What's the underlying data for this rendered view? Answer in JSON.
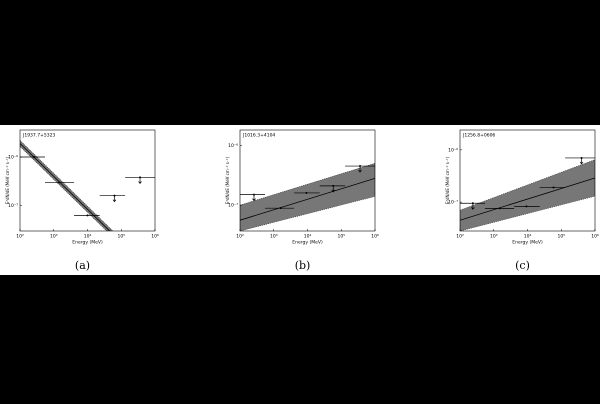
{
  "chart_data": [
    {
      "type": "sed",
      "annotation": "J1937.7+5323",
      "caption": "(a)",
      "x_label": "Energy (MeV)",
      "y_label": "E²dN/dE (MeV cm⁻² s⁻¹)",
      "log_x": true,
      "log_y": true,
      "xlim": [
        100,
        1000000
      ],
      "xticks": [
        {
          "value": 100,
          "label": "10²"
        },
        {
          "value": 1000,
          "label": "10³"
        },
        {
          "value": 10000,
          "label": "10⁴"
        },
        {
          "value": 100000,
          "label": "10⁵"
        },
        {
          "value": 1000000,
          "label": "10⁶"
        }
      ],
      "ylim": [
        3e-08,
        3.6e-06
      ],
      "yticks": [
        {
          "value": 1e-07,
          "label": "10⁻⁷"
        },
        {
          "value": 1e-06,
          "label": "10⁻⁶"
        }
      ],
      "points": {
        "x": [
          260,
          1450,
          10000,
          63000,
          360000
        ],
        "x_low": [
          100,
          550,
          4000,
          23000,
          130000
        ],
        "x_high": [
          550,
          4000,
          23000,
          130000,
          1000000
        ],
        "y": [
          1e-06,
          3e-07,
          6.3e-08,
          1.6e-07,
          3.8e-07
        ],
        "upper_limit": [
          false,
          false,
          false,
          true,
          true
        ]
      },
      "model": {
        "x": [
          100,
          1000000
        ],
        "y": [
          1.9e-06,
          3.7e-09
        ],
        "y_upper": [
          2.2e-06,
          4.3e-09
        ],
        "y_lower": [
          1.65e-06,
          3.2e-09
        ]
      }
    },
    {
      "type": "sed",
      "annotation": "J1016.3+4104",
      "caption": "(b)",
      "x_label": "Energy (MeV)",
      "y_label": "E²dN/dE (MeV cm⁻² s⁻¹)",
      "log_x": true,
      "log_y": true,
      "xlim": [
        100,
        1000000
      ],
      "xticks": [
        {
          "value": 100,
          "label": "10²"
        },
        {
          "value": 1000,
          "label": "10³"
        },
        {
          "value": 10000,
          "label": "10⁴"
        },
        {
          "value": 100000,
          "label": "10⁵"
        },
        {
          "value": 1000000,
          "label": "10⁶"
        }
      ],
      "ylim": [
        3.7e-08,
        1.8e-06
      ],
      "yticks": [
        {
          "value": 1e-07,
          "label": "10⁻⁷"
        },
        {
          "value": 1e-06,
          "label": "10⁻⁶"
        }
      ],
      "points": {
        "x": [
          260,
          1600,
          9300,
          58000,
          360000
        ],
        "x_low": [
          100,
          550,
          4000,
          23000,
          130000
        ],
        "x_high": [
          550,
          4000,
          23000,
          130000,
          1000000
        ],
        "y": [
          1.5e-07,
          8.9e-08,
          1.6e-07,
          2.1e-07,
          4.5e-07
        ],
        "upper_limit": [
          true,
          false,
          false,
          true,
          true
        ]
      },
      "model": {
        "x": [
          100,
          1000000
        ],
        "y": [
          5.6e-08,
          2.8e-07
        ],
        "y_upper": [
          1e-07,
          5e-07
        ],
        "y_lower": [
          3.7e-08,
          1.4e-07
        ]
      }
    },
    {
      "type": "sed",
      "annotation": "J1256.8+0606",
      "caption": "(c)",
      "x_label": "Energy (MeV)",
      "y_label": "E²dN/dE (MeV cm⁻² s⁻¹)",
      "log_x": true,
      "log_y": true,
      "xlim": [
        100,
        1000000
      ],
      "xticks": [
        {
          "value": 100,
          "label": "10²"
        },
        {
          "value": 1000,
          "label": "10³"
        },
        {
          "value": 10000,
          "label": "10⁴"
        },
        {
          "value": 100000,
          "label": "10⁵"
        },
        {
          "value": 1000000,
          "label": "10⁶"
        }
      ],
      "ylim": [
        2.8e-08,
        2.4e-06
      ],
      "yticks": [
        {
          "value": 1e-07,
          "label": "10⁻⁷"
        },
        {
          "value": 1e-06,
          "label": "10⁻⁶"
        }
      ],
      "points": {
        "x": [
          240,
          1500,
          9300,
          59000,
          400000
        ],
        "x_low": [
          100,
          550,
          4000,
          23000,
          130000
        ],
        "x_high": [
          550,
          4000,
          23000,
          130000,
          1000000
        ],
        "y": [
          9.5e-08,
          7.6e-08,
          8.3e-08,
          1.9e-07,
          7e-07
        ],
        "upper_limit": [
          true,
          false,
          false,
          false,
          true
        ]
      },
      "model": {
        "x": [
          100,
          1000000
        ],
        "y": [
          4.5e-08,
          2.9e-07
        ],
        "y_upper": [
          7e-08,
          6.5e-07
        ],
        "y_lower": [
          2.8e-08,
          1.3e-07
        ]
      }
    }
  ]
}
